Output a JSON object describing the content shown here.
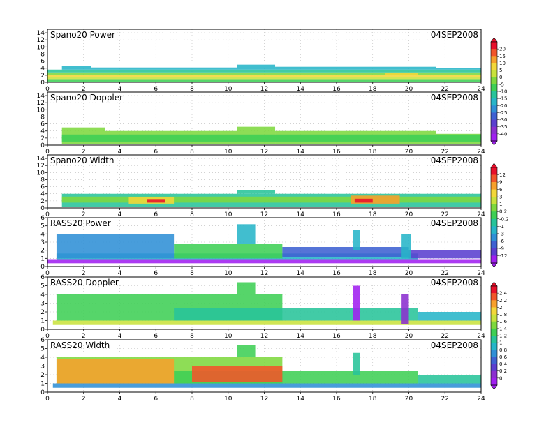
{
  "figure": {
    "x_ticks": [
      0,
      2,
      4,
      6,
      8,
      10,
      12,
      14,
      16,
      18,
      20,
      22,
      24
    ],
    "xlim": [
      0,
      24
    ]
  },
  "colorbars": [
    {
      "labels": [
        "20",
        "15",
        "10",
        "5",
        "0",
        "-5",
        "-10",
        "-15",
        "-20",
        "-25",
        "-30",
        "-35",
        "-40"
      ],
      "colors": [
        "#e8102b",
        "#f2552a",
        "#f7a02c",
        "#f3d73a",
        "#c9e23d",
        "#7ed83f",
        "#3fcf55",
        "#28c49a",
        "#27b5c8",
        "#2f8fd6",
        "#3e61d2",
        "#5a3fcf",
        "#8b2fcf",
        "#a020f0"
      ]
    },
    {
      "labels": [
        "12",
        "9",
        "6",
        "3",
        "1",
        "0.2",
        "-0.2",
        "-1",
        "-3",
        "-6",
        "-9",
        "-12"
      ],
      "colors": [
        "#e8102b",
        "#f2552a",
        "#f7a02c",
        "#f3d73a",
        "#c9e23d",
        "#7ed83f",
        "#3fcf55",
        "#28c49a",
        "#27b5c8",
        "#2f8fd6",
        "#3e61d2",
        "#5a3fcf",
        "#a020f0"
      ]
    },
    {
      "labels": [
        "2.4",
        "2.2",
        "2",
        "1.8",
        "1.6",
        "1.4",
        "1.2",
        "1",
        "0.8",
        "0.6",
        "0.4",
        "0.2",
        "0"
      ],
      "colors": [
        "#e8102b",
        "#f2552a",
        "#f7a02c",
        "#f3d73a",
        "#c9e23d",
        "#7ed83f",
        "#3fcf55",
        "#28c49a",
        "#27b5c8",
        "#2f8fd6",
        "#3e61d2",
        "#5a3fcf",
        "#8b2fcf",
        "#a020f0"
      ]
    }
  ],
  "chart_data": [
    {
      "type": "heatmap",
      "title": "Spano20 Power",
      "date": "04SEP2008",
      "y_ticks": [
        0,
        2,
        4,
        6,
        8,
        10,
        12,
        14
      ],
      "ylim": [
        0,
        15
      ],
      "xlim": [
        0,
        24
      ],
      "grid": true,
      "colorbar": 0,
      "bands": [
        {
          "x": [
            0,
            24
          ],
          "y": [
            0.2,
            0.9
          ],
          "color": "#3fcf55"
        },
        {
          "x": [
            0,
            24
          ],
          "y": [
            0.9,
            1.5
          ],
          "color": "#c9e23d"
        },
        {
          "x": [
            0,
            24
          ],
          "y": [
            1.5,
            2.0
          ],
          "color": "#f3d73a"
        },
        {
          "x": [
            0,
            24
          ],
          "y": [
            2.0,
            2.8
          ],
          "color": "#7ed83f"
        },
        {
          "x": [
            0,
            24
          ],
          "y": [
            2.8,
            3.6
          ],
          "color": "#28c49a"
        },
        {
          "x": [
            0.8,
            2.4
          ],
          "y": [
            3.6,
            4.6
          ],
          "color": "#27b5c8"
        },
        {
          "x": [
            2.4,
            10.5
          ],
          "y": [
            3.6,
            4.2
          ],
          "color": "#27b5c8"
        },
        {
          "x": [
            10.5,
            12.6
          ],
          "y": [
            3.6,
            5.0
          ],
          "color": "#27b5c8"
        },
        {
          "x": [
            12.6,
            21.5
          ],
          "y": [
            3.6,
            4.4
          ],
          "color": "#27b5c8"
        },
        {
          "x": [
            21.5,
            24
          ],
          "y": [
            3.6,
            4.0
          ],
          "color": "#27b5c8"
        },
        {
          "x": [
            18.7,
            20.5
          ],
          "y": [
            2.0,
            2.6
          ],
          "color": "#f3d73a"
        }
      ]
    },
    {
      "type": "heatmap",
      "title": "Spano20 Doppler",
      "date": "04SEP2008",
      "y_ticks": [
        0,
        2,
        4,
        6,
        8,
        10,
        12,
        14
      ],
      "ylim": [
        0,
        15
      ],
      "xlim": [
        0,
        24
      ],
      "grid": true,
      "colorbar": 0,
      "bands": [
        {
          "x": [
            0.8,
            3.2
          ],
          "y": [
            0.2,
            5.0
          ],
          "color": "#7ed83f"
        },
        {
          "x": [
            3.2,
            10.5
          ],
          "y": [
            0.2,
            4.0
          ],
          "color": "#7ed83f"
        },
        {
          "x": [
            10.5,
            12.6
          ],
          "y": [
            0.2,
            5.2
          ],
          "color": "#7ed83f"
        },
        {
          "x": [
            12.6,
            21.5
          ],
          "y": [
            0.2,
            4.0
          ],
          "color": "#7ed83f"
        },
        {
          "x": [
            21.5,
            24
          ],
          "y": [
            0.2,
            3.2
          ],
          "color": "#7ed83f"
        },
        {
          "x": [
            0.8,
            24
          ],
          "y": [
            1.0,
            3.0
          ],
          "color": "#3fcf55"
        }
      ]
    },
    {
      "type": "heatmap",
      "title": "Spano20 Width",
      "date": "04SEP2008",
      "y_ticks": [
        0,
        2,
        4,
        6,
        8,
        10,
        12,
        14
      ],
      "ylim": [
        0,
        15
      ],
      "xlim": [
        0,
        24
      ],
      "grid": true,
      "colorbar": 1,
      "bands": [
        {
          "x": [
            0.8,
            24
          ],
          "y": [
            0.2,
            4.0
          ],
          "color": "#28c49a"
        },
        {
          "x": [
            10.5,
            12.6
          ],
          "y": [
            4.0,
            5.0
          ],
          "color": "#28c49a"
        },
        {
          "x": [
            0.8,
            24
          ],
          "y": [
            1.5,
            3.2
          ],
          "color": "#7ed83f"
        },
        {
          "x": [
            4.5,
            7.0
          ],
          "y": [
            1.2,
            3.0
          ],
          "color": "#f3d73a"
        },
        {
          "x": [
            5.5,
            6.5
          ],
          "y": [
            1.5,
            2.5
          ],
          "color": "#e8102b"
        },
        {
          "x": [
            16.8,
            19.5
          ],
          "y": [
            1.2,
            3.5
          ],
          "color": "#f7a02c"
        },
        {
          "x": [
            17.0,
            18.0
          ],
          "y": [
            1.5,
            2.6
          ],
          "color": "#e8102b"
        }
      ]
    },
    {
      "type": "heatmap",
      "title": "RASS20 Power",
      "date": "04SEP2008",
      "y_ticks": [
        0,
        1,
        2,
        3,
        4,
        5,
        6
      ],
      "ylim": [
        0,
        6
      ],
      "xlim": [
        0,
        24
      ],
      "grid": true,
      "colorbar": 1,
      "bands": [
        {
          "x": [
            0,
            24
          ],
          "y": [
            0.4,
            0.9
          ],
          "color": "#a020f0"
        },
        {
          "x": [
            0.5,
            20.5
          ],
          "y": [
            0.9,
            1.6
          ],
          "color": "#27b5c8"
        },
        {
          "x": [
            7.0,
            13.0
          ],
          "y": [
            1.0,
            2.8
          ],
          "color": "#3fcf55"
        },
        {
          "x": [
            13.0,
            20.0
          ],
          "y": [
            1.2,
            2.4
          ],
          "color": "#3e61d2"
        },
        {
          "x": [
            20.0,
            24.0
          ],
          "y": [
            1.0,
            2.0
          ],
          "color": "#5a3fcf"
        },
        {
          "x": [
            0.5,
            7.0
          ],
          "y": [
            1.0,
            4.0
          ],
          "color": "#2f8fd6"
        },
        {
          "x": [
            10.5,
            11.5
          ],
          "y": [
            2.8,
            5.2
          ],
          "color": "#27b5c8"
        },
        {
          "x": [
            16.9,
            17.3
          ],
          "y": [
            2.0,
            4.5
          ],
          "color": "#27b5c8"
        },
        {
          "x": [
            19.6,
            20.1
          ],
          "y": [
            1.0,
            4.0
          ],
          "color": "#27b5c8"
        }
      ]
    },
    {
      "type": "heatmap",
      "title": "RASS20 Doppler",
      "date": "04SEP2008",
      "y_ticks": [
        0,
        1,
        2,
        3,
        4,
        5,
        6
      ],
      "ylim": [
        0,
        6
      ],
      "xlim": [
        0,
        24
      ],
      "grid": true,
      "colorbar": 2,
      "bands": [
        {
          "x": [
            0.3,
            24
          ],
          "y": [
            0.5,
            1.0
          ],
          "color": "#c9e23d"
        },
        {
          "x": [
            0.5,
            13.0
          ],
          "y": [
            1.0,
            4.0
          ],
          "color": "#3fcf55"
        },
        {
          "x": [
            7.0,
            20.5
          ],
          "y": [
            1.0,
            2.4
          ],
          "color": "#28c49a"
        },
        {
          "x": [
            20.5,
            24.0
          ],
          "y": [
            1.0,
            2.0
          ],
          "color": "#27b5c8"
        },
        {
          "x": [
            10.5,
            11.5
          ],
          "y": [
            4.0,
            5.4
          ],
          "color": "#3fcf55"
        },
        {
          "x": [
            16.9,
            17.3
          ],
          "y": [
            1.0,
            5.0
          ],
          "color": "#a020f0"
        },
        {
          "x": [
            19.6,
            20.0
          ],
          "y": [
            0.6,
            4.0
          ],
          "color": "#8b2fcf"
        }
      ]
    },
    {
      "type": "heatmap",
      "title": "RASS20 Width",
      "date": "04SEP2008",
      "y_ticks": [
        0,
        1,
        2,
        3,
        4,
        5,
        6
      ],
      "ylim": [
        0,
        6
      ],
      "xlim": [
        0,
        24
      ],
      "grid": true,
      "colorbar": 2,
      "bands": [
        {
          "x": [
            0.3,
            24
          ],
          "y": [
            0.5,
            1.0
          ],
          "color": "#2f8fd6"
        },
        {
          "x": [
            0.5,
            13.0
          ],
          "y": [
            1.0,
            4.0
          ],
          "color": "#7ed83f"
        },
        {
          "x": [
            7.0,
            20.5
          ],
          "y": [
            1.0,
            2.4
          ],
          "color": "#3fcf55"
        },
        {
          "x": [
            20.5,
            24.0
          ],
          "y": [
            1.0,
            2.0
          ],
          "color": "#28c49a"
        },
        {
          "x": [
            0.5,
            7.0
          ],
          "y": [
            1.0,
            3.8
          ],
          "color": "#f7a02c"
        },
        {
          "x": [
            8.0,
            13.0
          ],
          "y": [
            1.2,
            3.0
          ],
          "color": "#f2552a"
        },
        {
          "x": [
            10.5,
            11.5
          ],
          "y": [
            4.0,
            5.4
          ],
          "color": "#3fcf55"
        },
        {
          "x": [
            16.9,
            17.3
          ],
          "y": [
            2.0,
            4.5
          ],
          "color": "#28c49a"
        }
      ]
    }
  ]
}
